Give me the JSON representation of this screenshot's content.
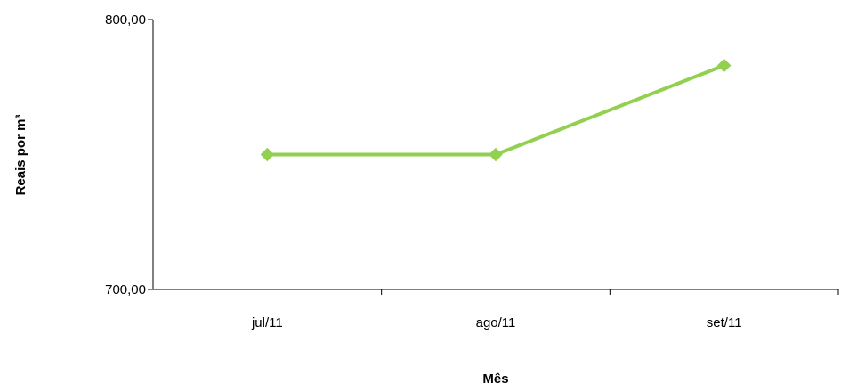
{
  "chart_data": {
    "type": "line",
    "title": "",
    "xlabel": "Mês",
    "ylabel": "Reais por  m³",
    "categories": [
      "jul/11",
      "ago/11",
      "set/11"
    ],
    "series": [
      {
        "values": [
          750,
          750,
          783
        ],
        "color": "#92d050"
      }
    ],
    "ylim": [
      700,
      800
    ],
    "y_ticks": [
      {
        "value": 700,
        "label": "700,00"
      },
      {
        "value": 800,
        "label": "800,00"
      }
    ],
    "grid": false,
    "legend": "none",
    "marker": "diamond"
  }
}
